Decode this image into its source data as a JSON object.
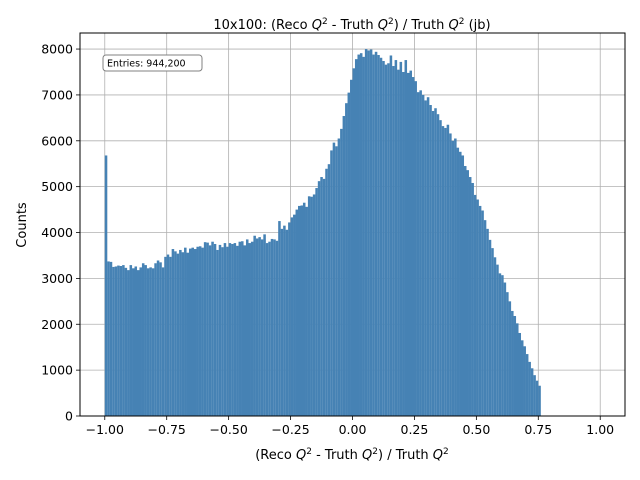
{
  "chart_data": {
    "type": "bar",
    "title_parts": [
      "10x100: (Reco ",
      "Q",
      "2",
      " - Truth ",
      "Q",
      "2",
      ") / Truth ",
      "Q",
      "2",
      " (jb)"
    ],
    "xlabel_parts": [
      "(Reco ",
      "Q",
      "2",
      " - Truth ",
      "Q",
      "2",
      ") / Truth ",
      "Q",
      "2"
    ],
    "ylabel": "Counts",
    "annotation": "Entries: 944,200",
    "xlim": [
      -1.1,
      1.1
    ],
    "ylim": [
      0,
      8350
    ],
    "xticks": [
      -1.0,
      -0.75,
      -0.5,
      -0.25,
      0.0,
      0.25,
      0.5,
      0.75,
      1.0
    ],
    "xtick_labels": [
      "−1.00",
      "−0.75",
      "−0.50",
      "−0.25",
      "0.00",
      "0.25",
      "0.50",
      "0.75",
      "1.00"
    ],
    "yticks": [
      0,
      1000,
      2000,
      3000,
      4000,
      5000,
      6000,
      7000,
      8000
    ],
    "ytick_labels": [
      "0",
      "1000",
      "2000",
      "3000",
      "4000",
      "5000",
      "6000",
      "7000",
      "8000"
    ],
    "grid": true,
    "bar_color": "#4682b4",
    "bin_start": -1.0,
    "bin_width": 0.01,
    "values": [
      5680,
      3370,
      3360,
      3250,
      3260,
      3280,
      3270,
      3290,
      3230,
      3180,
      3290,
      3220,
      3260,
      3180,
      3240,
      3330,
      3290,
      3220,
      3240,
      3220,
      3330,
      3390,
      3350,
      3240,
      3470,
      3520,
      3470,
      3640,
      3590,
      3540,
      3620,
      3570,
      3670,
      3560,
      3650,
      3670,
      3640,
      3690,
      3700,
      3670,
      3790,
      3780,
      3720,
      3800,
      3750,
      3620,
      3730,
      3680,
      3770,
      3690,
      3770,
      3750,
      3770,
      3710,
      3800,
      3810,
      3720,
      3850,
      3770,
      3800,
      3930,
      3870,
      3900,
      3850,
      3960,
      3770,
      3800,
      3860,
      3850,
      3820,
      4250,
      4080,
      4150,
      4060,
      4220,
      4330,
      4390,
      4500,
      4580,
      4590,
      4650,
      4560,
      4790,
      4780,
      4830,
      4970,
      5120,
      5210,
      5170,
      5390,
      5490,
      5790,
      5960,
      5880,
      6050,
      6260,
      6540,
      6820,
      7050,
      7330,
      7580,
      7780,
      7880,
      7910,
      7830,
      8000,
      7970,
      7990,
      7880,
      7940,
      7870,
      7810,
      7740,
      7660,
      7690,
      7860,
      7630,
      7760,
      7550,
      7720,
      7500,
      7760,
      7480,
      7530,
      7390,
      7300,
      7060,
      7100,
      7000,
      6880,
      6950,
      6780,
      6650,
      6710,
      6580,
      6450,
      6320,
      6280,
      6350,
      6160,
      6000,
      6050,
      5850,
      5760,
      5680,
      5450,
      5360,
      5210,
      5080,
      4820,
      4720,
      4580,
      4480,
      4270,
      4080,
      3840,
      3660,
      3460,
      3300,
      3110,
      3070,
      2910,
      2700,
      2500,
      2290,
      2180,
      2020,
      1810,
      1650,
      1520,
      1350,
      1180,
      1040,
      890,
      770,
      660
    ]
  }
}
